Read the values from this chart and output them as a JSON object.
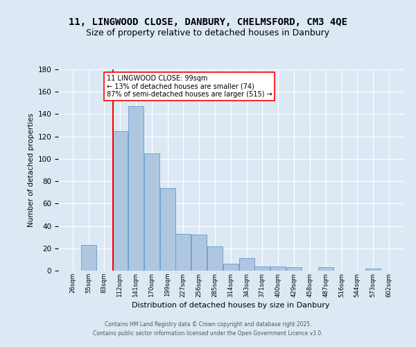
{
  "title_line1": "11, LINGWOOD CLOSE, DANBURY, CHELMSFORD, CM3 4QE",
  "title_line2": "Size of property relative to detached houses in Danbury",
  "xlabel": "Distribution of detached houses by size in Danbury",
  "ylabel": "Number of detached properties",
  "bins": [
    26,
    55,
    83,
    112,
    141,
    170,
    199,
    227,
    256,
    285,
    314,
    343,
    371,
    400,
    429,
    458,
    487,
    516,
    544,
    573,
    602
  ],
  "counts": [
    0,
    23,
    0,
    125,
    147,
    105,
    74,
    33,
    32,
    22,
    6,
    11,
    4,
    4,
    3,
    0,
    3,
    0,
    0,
    2,
    0
  ],
  "bar_color": "#aec6e0",
  "bar_edge_color": "#6699cc",
  "red_line_x": 99,
  "annotation_box_text": "11 LINGWOOD CLOSE: 99sqm\n← 13% of detached houses are smaller (74)\n87% of semi-detached houses are larger (515) →",
  "annotation_fontsize": 7,
  "ylim": [
    0,
    180
  ],
  "yticks": [
    0,
    20,
    40,
    60,
    80,
    100,
    120,
    140,
    160,
    180
  ],
  "background_color": "#dce9f5",
  "grid_color": "white",
  "title_fontsize": 10,
  "subtitle_fontsize": 9,
  "footer_line1": "Contains HM Land Registry data © Crown copyright and database right 2025.",
  "footer_line2": "Contains public sector information licensed under the Open Government Licence v3.0."
}
